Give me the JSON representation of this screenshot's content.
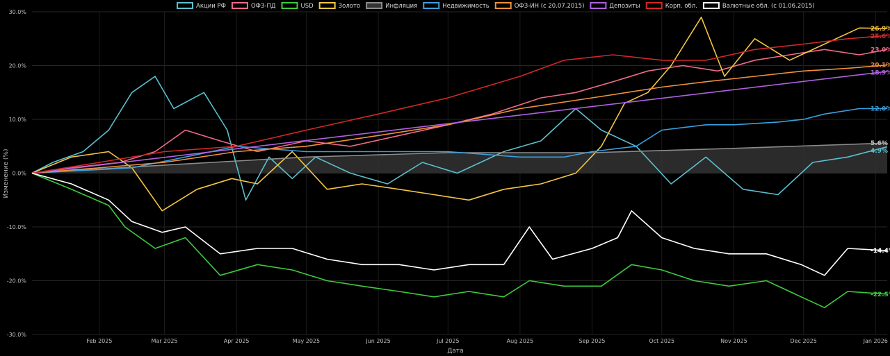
{
  "chart_data": {
    "type": "line",
    "title": "",
    "xlabel": "Дата",
    "ylabel": "Изменение (%)",
    "ylim": [
      -30,
      30
    ],
    "y_ticks": [
      "30.0%",
      "20.0%",
      "10.0%",
      "0.0%",
      "-10.0%",
      "-20.0%",
      "-30.0%"
    ],
    "x_ticks": [
      "Feb 2025",
      "Mar 2025",
      "Apr 2025",
      "May 2025",
      "Jun 2025",
      "Jul 2025",
      "Aug 2025",
      "Sep 2025",
      "Oct 2025",
      "Nov 2025",
      "Dec 2025",
      "Jan 2026"
    ],
    "x_range": [
      "2025-01-03",
      "2026-01-06"
    ],
    "grid": true,
    "legend_position": "top-center",
    "series": [
      {
        "name": "Акции РФ",
        "color": "#5bc0cf",
        "end_label": "4.9%",
        "points": [
          [
            "2025-01-03",
            0
          ],
          [
            "2025-01-12",
            2
          ],
          [
            "2025-01-25",
            4
          ],
          [
            "2025-02-05",
            8
          ],
          [
            "2025-02-15",
            15
          ],
          [
            "2025-02-25",
            18
          ],
          [
            "2025-03-05",
            12
          ],
          [
            "2025-03-18",
            15
          ],
          [
            "2025-03-28",
            8
          ],
          [
            "2025-04-05",
            -5
          ],
          [
            "2025-04-15",
            3
          ],
          [
            "2025-04-25",
            -1
          ],
          [
            "2025-05-05",
            3
          ],
          [
            "2025-05-20",
            0
          ],
          [
            "2025-06-05",
            -2
          ],
          [
            "2025-06-20",
            2
          ],
          [
            "2025-07-05",
            0
          ],
          [
            "2025-07-25",
            4
          ],
          [
            "2025-08-10",
            6
          ],
          [
            "2025-08-25",
            12
          ],
          [
            "2025-09-05",
            8
          ],
          [
            "2025-09-20",
            5
          ],
          [
            "2025-10-05",
            -2
          ],
          [
            "2025-10-20",
            3
          ],
          [
            "2025-11-05",
            -3
          ],
          [
            "2025-11-20",
            -4
          ],
          [
            "2025-12-05",
            2
          ],
          [
            "2025-12-20",
            3
          ],
          [
            "2026-01-06",
            4.9
          ]
        ]
      },
      {
        "name": "ОФЗ-ПД",
        "color": "#f06a8a",
        "end_label": "23.0%",
        "points": [
          [
            "2025-01-03",
            0
          ],
          [
            "2025-01-20",
            1
          ],
          [
            "2025-02-10",
            2
          ],
          [
            "2025-02-25",
            4
          ],
          [
            "2025-03-10",
            8
          ],
          [
            "2025-03-25",
            6
          ],
          [
            "2025-04-10",
            4
          ],
          [
            "2025-05-01",
            6
          ],
          [
            "2025-05-20",
            5
          ],
          [
            "2025-06-10",
            7
          ],
          [
            "2025-07-01",
            9
          ],
          [
            "2025-07-20",
            11
          ],
          [
            "2025-08-10",
            14
          ],
          [
            "2025-08-25",
            15
          ],
          [
            "2025-09-10",
            17
          ],
          [
            "2025-09-25",
            19
          ],
          [
            "2025-10-10",
            20
          ],
          [
            "2025-10-25",
            19
          ],
          [
            "2025-11-10",
            21
          ],
          [
            "2025-11-25",
            22
          ],
          [
            "2025-12-10",
            23
          ],
          [
            "2025-12-25",
            22
          ],
          [
            "2026-01-06",
            23.0
          ]
        ]
      },
      {
        "name": "USD",
        "color": "#3dcc3d",
        "end_label": "-22.5%",
        "points": [
          [
            "2025-01-03",
            0
          ],
          [
            "2025-01-20",
            -3
          ],
          [
            "2025-02-05",
            -6
          ],
          [
            "2025-02-12",
            -10
          ],
          [
            "2025-02-25",
            -14
          ],
          [
            "2025-03-10",
            -12
          ],
          [
            "2025-03-25",
            -19
          ],
          [
            "2025-04-10",
            -17
          ],
          [
            "2025-04-25",
            -18
          ],
          [
            "2025-05-10",
            -20
          ],
          [
            "2025-05-25",
            -21
          ],
          [
            "2025-06-10",
            -22
          ],
          [
            "2025-06-25",
            -23
          ],
          [
            "2025-07-10",
            -22
          ],
          [
            "2025-07-25",
            -23
          ],
          [
            "2025-08-05",
            -20
          ],
          [
            "2025-08-20",
            -21
          ],
          [
            "2025-09-05",
            -21
          ],
          [
            "2025-09-18",
            -17
          ],
          [
            "2025-10-01",
            -18
          ],
          [
            "2025-10-15",
            -20
          ],
          [
            "2025-10-30",
            -21
          ],
          [
            "2025-11-15",
            -20
          ],
          [
            "2025-11-30",
            -23
          ],
          [
            "2025-12-10",
            -25
          ],
          [
            "2025-12-20",
            -22
          ],
          [
            "2026-01-06",
            -22.5
          ]
        ]
      },
      {
        "name": "Золото",
        "color": "#f5c542",
        "end_label": "26.9%",
        "points": [
          [
            "2025-01-03",
            0
          ],
          [
            "2025-01-20",
            3
          ],
          [
            "2025-02-05",
            4
          ],
          [
            "2025-02-15",
            1
          ],
          [
            "2025-02-28",
            -7
          ],
          [
            "2025-03-15",
            -3
          ],
          [
            "2025-03-30",
            -1
          ],
          [
            "2025-04-10",
            -2
          ],
          [
            "2025-04-25",
            4
          ],
          [
            "2025-05-10",
            -3
          ],
          [
            "2025-05-25",
            -2
          ],
          [
            "2025-06-10",
            -3
          ],
          [
            "2025-06-25",
            -4
          ],
          [
            "2025-07-10",
            -5
          ],
          [
            "2025-07-25",
            -3
          ],
          [
            "2025-08-10",
            -2
          ],
          [
            "2025-08-25",
            0
          ],
          [
            "2025-09-05",
            5
          ],
          [
            "2025-09-15",
            13
          ],
          [
            "2025-09-25",
            15
          ],
          [
            "2025-10-05",
            20
          ],
          [
            "2025-10-18",
            29
          ],
          [
            "2025-10-28",
            18
          ],
          [
            "2025-11-10",
            25
          ],
          [
            "2025-11-25",
            21
          ],
          [
            "2025-12-10",
            24
          ],
          [
            "2025-12-25",
            27
          ],
          [
            "2026-01-06",
            26.9
          ]
        ]
      },
      {
        "name": "Инфляция",
        "color": "#8c8c8c",
        "fill": "#333333",
        "end_label": "5.6%",
        "points": [
          [
            "2025-01-03",
            0
          ],
          [
            "2025-03-01",
            1.5
          ],
          [
            "2025-05-01",
            3
          ],
          [
            "2025-07-01",
            3.8
          ],
          [
            "2025-09-01",
            3.8
          ],
          [
            "2025-11-01",
            4.6
          ],
          [
            "2026-01-06",
            5.6
          ]
        ]
      },
      {
        "name": "Недвижимость",
        "color": "#3aa0e0",
        "end_label": "12.0%",
        "points": [
          [
            "2025-01-03",
            0
          ],
          [
            "2025-02-15",
            1
          ],
          [
            "2025-03-10",
            3
          ],
          [
            "2025-04-01",
            5
          ],
          [
            "2025-05-01",
            4
          ],
          [
            "2025-06-01",
            4
          ],
          [
            "2025-07-01",
            4
          ],
          [
            "2025-08-01",
            3
          ],
          [
            "2025-08-20",
            3
          ],
          [
            "2025-09-01",
            4
          ],
          [
            "2025-09-20",
            5
          ],
          [
            "2025-10-01",
            8
          ],
          [
            "2025-10-20",
            9
          ],
          [
            "2025-11-01",
            9
          ],
          [
            "2025-11-20",
            9.5
          ],
          [
            "2025-12-01",
            10
          ],
          [
            "2025-12-10",
            11
          ],
          [
            "2025-12-25",
            12
          ],
          [
            "2026-01-06",
            12.0
          ]
        ]
      },
      {
        "name": "ОФЗ-ИН (с 20.07.2015)",
        "color": "#f0903a",
        "end_label": "20.1%",
        "points": [
          [
            "2025-01-03",
            0
          ],
          [
            "2025-02-01",
            1
          ],
          [
            "2025-03-01",
            2
          ],
          [
            "2025-04-01",
            4
          ],
          [
            "2025-05-01",
            5
          ],
          [
            "2025-06-01",
            7
          ],
          [
            "2025-07-01",
            9
          ],
          [
            "2025-08-01",
            12
          ],
          [
            "2025-09-01",
            14
          ],
          [
            "2025-10-01",
            16
          ],
          [
            "2025-10-20",
            17
          ],
          [
            "2025-11-10",
            18
          ],
          [
            "2025-12-01",
            19
          ],
          [
            "2025-12-20",
            19.5
          ],
          [
            "2026-01-06",
            20.1
          ]
        ]
      },
      {
        "name": "Депозиты",
        "color": "#b060e0",
        "end_label": "18.9%",
        "points": [
          [
            "2025-01-03",
            0
          ],
          [
            "2026-01-06",
            18.9
          ]
        ]
      },
      {
        "name": "Корп. обл.",
        "color": "#d02828",
        "end_label": "25.6%",
        "points": [
          [
            "2025-01-03",
            0
          ],
          [
            "2025-02-01",
            2
          ],
          [
            "2025-03-01",
            4
          ],
          [
            "2025-04-01",
            5
          ],
          [
            "2025-05-01",
            8
          ],
          [
            "2025-06-01",
            11
          ],
          [
            "2025-07-01",
            14
          ],
          [
            "2025-08-01",
            18
          ],
          [
            "2025-08-20",
            21
          ],
          [
            "2025-09-10",
            22
          ],
          [
            "2025-10-01",
            21
          ],
          [
            "2025-10-20",
            21
          ],
          [
            "2025-11-10",
            23
          ],
          [
            "2025-12-01",
            24
          ],
          [
            "2025-12-20",
            25
          ],
          [
            "2026-01-06",
            25.6
          ]
        ]
      },
      {
        "name": "Валютные обл. (с 01.06.2015)",
        "color": "#ffffff",
        "end_label": "-14.4%",
        "points": [
          [
            "2025-01-03",
            0
          ],
          [
            "2025-01-20",
            -2
          ],
          [
            "2025-02-05",
            -5
          ],
          [
            "2025-02-15",
            -9
          ],
          [
            "2025-02-28",
            -11
          ],
          [
            "2025-03-10",
            -10
          ],
          [
            "2025-03-25",
            -15
          ],
          [
            "2025-04-10",
            -14
          ],
          [
            "2025-04-25",
            -14
          ],
          [
            "2025-05-10",
            -16
          ],
          [
            "2025-05-25",
            -17
          ],
          [
            "2025-06-10",
            -17
          ],
          [
            "2025-06-25",
            -18
          ],
          [
            "2025-07-10",
            -17
          ],
          [
            "2025-07-25",
            -17
          ],
          [
            "2025-08-05",
            -10
          ],
          [
            "2025-08-15",
            -16
          ],
          [
            "2025-09-01",
            -14
          ],
          [
            "2025-09-12",
            -12
          ],
          [
            "2025-09-18",
            -7
          ],
          [
            "2025-10-01",
            -12
          ],
          [
            "2025-10-15",
            -14
          ],
          [
            "2025-10-30",
            -15
          ],
          [
            "2025-11-15",
            -15
          ],
          [
            "2025-11-30",
            -17
          ],
          [
            "2025-12-10",
            -19
          ],
          [
            "2025-12-20",
            -14
          ],
          [
            "2026-01-06",
            -14.4
          ]
        ]
      }
    ]
  }
}
